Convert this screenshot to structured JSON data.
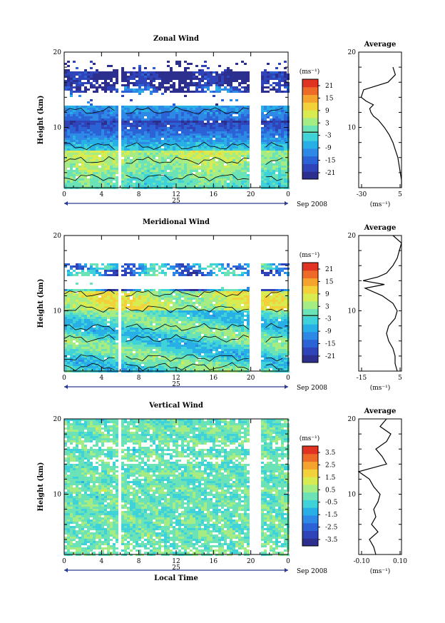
{
  "chart_data": [
    {
      "type": "heatmap",
      "title": "Zonal Wind",
      "ylabel": "Height (km)",
      "xlim": [
        0,
        24
      ],
      "ylim": [
        2,
        20
      ],
      "x_ticks": [
        "0",
        "4",
        "8",
        "12",
        "16",
        "20",
        "0"
      ],
      "y_ticks": [
        "20",
        "10"
      ],
      "day_label": "25",
      "month_label": "Sep 2008",
      "colorbar": {
        "unit": "(ms⁻¹)",
        "ticks": [
          "21",
          "15",
          "9",
          "3",
          "-3",
          "-9",
          "-15",
          "-21"
        ],
        "range": [
          -24,
          24
        ]
      },
      "profile": {
        "title": "Average",
        "x_ticks": [
          "-30",
          "5"
        ],
        "xlim": [
          -30,
          5
        ],
        "xlabel": "(ms⁻¹)",
        "y_ticks": [
          "20",
          "10"
        ],
        "height": [
          2,
          3,
          4,
          5,
          6,
          7,
          8,
          9,
          10,
          11,
          11.5,
          12,
          12.5,
          13,
          13.5,
          14,
          15,
          16,
          17,
          18
        ],
        "value": [
          5,
          5,
          4,
          3,
          2,
          0,
          -2,
          -5,
          -9,
          -14,
          -18,
          -20,
          -21,
          -18,
          -24,
          -28,
          -26,
          -6,
          0,
          -2
        ]
      }
    },
    {
      "type": "heatmap",
      "title": "Meridional Wind",
      "ylabel": "Height (km)",
      "xlim": [
        0,
        24
      ],
      "ylim": [
        2,
        20
      ],
      "x_ticks": [
        "0",
        "4",
        "8",
        "12",
        "16",
        "20",
        "0"
      ],
      "y_ticks": [
        "20",
        "10"
      ],
      "day_label": "25",
      "month_label": "Sep 2008",
      "colorbar": {
        "unit": "(ms⁻¹)",
        "ticks": [
          "21",
          "15",
          "9",
          "3",
          "-3",
          "-9",
          "-15",
          "-21"
        ],
        "range": [
          -24,
          24
        ]
      },
      "profile": {
        "title": "Average",
        "x_ticks": [
          "-15",
          "5"
        ],
        "xlim": [
          -15,
          5
        ],
        "xlabel": "(ms⁻¹)",
        "y_ticks": [
          "20",
          "10"
        ],
        "height": [
          2,
          3,
          4,
          5,
          6,
          7,
          8,
          9,
          10,
          11,
          12,
          12.5,
          13,
          13.5,
          14,
          14.5,
          15,
          16,
          17,
          18,
          19,
          20
        ],
        "value": [
          3,
          2,
          2,
          1,
          -1,
          -2,
          -1,
          2,
          3,
          1,
          -4,
          -8,
          -12,
          -3,
          -13,
          -6,
          -2,
          1,
          3,
          4,
          5,
          1
        ]
      }
    },
    {
      "type": "heatmap",
      "title": "Vertical Wind",
      "ylabel": "Height (km)",
      "xlabel": "Local Time",
      "xlim": [
        0,
        24
      ],
      "ylim": [
        2,
        20
      ],
      "x_ticks": [
        "0",
        "4",
        "8",
        "12",
        "16",
        "20",
        "0"
      ],
      "y_ticks": [
        "20",
        "10"
      ],
      "day_label": "25",
      "month_label": "Sep 2008",
      "colorbar": {
        "unit": "(ms⁻¹)",
        "ticks": [
          "3.5",
          "2.5",
          "1.5",
          "0.5",
          "-0.5",
          "-1.5",
          "-2.5",
          "-3.5"
        ],
        "range": [
          -4,
          4
        ]
      },
      "profile": {
        "title": "Average",
        "x_ticks": [
          "-0.10",
          "0.10"
        ],
        "xlim": [
          -0.1,
          0.1
        ],
        "xlabel": "(ms⁻¹)",
        "y_ticks": [
          "20",
          "10"
        ],
        "height": [
          2,
          3,
          4,
          5,
          6,
          7,
          8,
          9,
          10,
          11,
          12,
          13,
          14,
          15,
          16,
          17,
          18,
          19,
          20
        ],
        "value": [
          -0.02,
          -0.03,
          -0.05,
          -0.01,
          -0.04,
          -0.02,
          -0.03,
          -0.01,
          0.0,
          -0.03,
          -0.05,
          -0.1,
          0.03,
          0.01,
          -0.02,
          0.03,
          0.05,
          0.0,
          0.03
        ]
      }
    }
  ]
}
